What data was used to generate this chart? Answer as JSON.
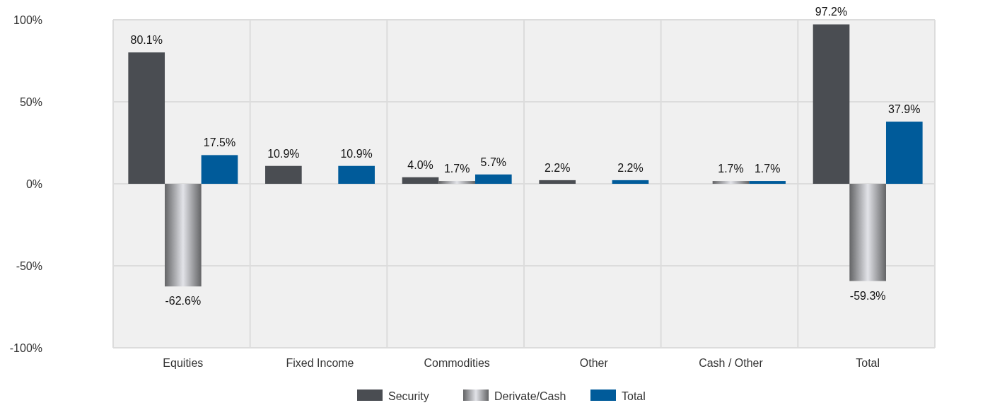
{
  "chart_data": {
    "type": "bar",
    "categories": [
      "Equities",
      "Fixed Income",
      "Commodities",
      "Other",
      "Cash / Other",
      "Total"
    ],
    "series": [
      {
        "name": "Security",
        "color": "#4a4d52",
        "values": [
          80.1,
          10.9,
          4.0,
          2.2,
          null,
          97.2
        ],
        "value_labels": [
          "80.1%",
          "10.9%",
          "4.0%",
          "2.2%",
          null,
          "97.2%"
        ]
      },
      {
        "name": "Derivate/Cash",
        "color": "#8e8f92",
        "values": [
          -62.6,
          null,
          1.7,
          null,
          1.7,
          -59.3
        ],
        "value_labels": [
          "-62.6%",
          null,
          "1.7%",
          null,
          "1.7%",
          "-59.3%"
        ]
      },
      {
        "name": "Total",
        "color": "#005b9a",
        "values": [
          17.5,
          10.9,
          5.7,
          2.2,
          1.7,
          37.9
        ],
        "value_labels": [
          "17.5%",
          "10.9%",
          "5.7%",
          "2.2%",
          "1.7%",
          "37.9%"
        ]
      }
    ],
    "ylim": [
      -100,
      100
    ],
    "yticks": [
      {
        "value": -100,
        "label": "-100%"
      },
      {
        "value": -50,
        "label": "-50%"
      },
      {
        "value": 0,
        "label": "0%"
      },
      {
        "value": 50,
        "label": "50%"
      },
      {
        "value": 100,
        "label": "100%"
      }
    ],
    "grid": true,
    "legend": "bottom"
  }
}
